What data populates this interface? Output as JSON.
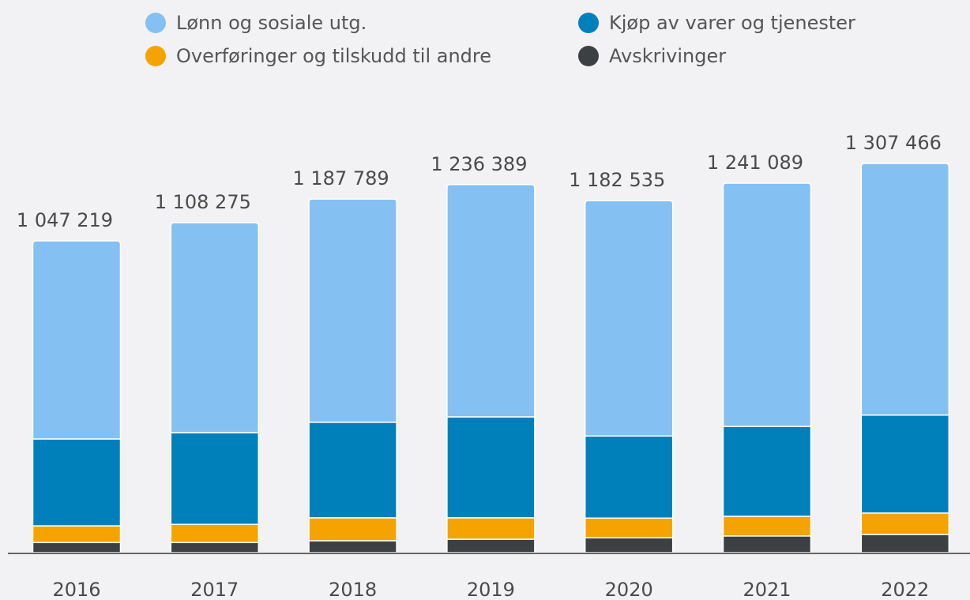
{
  "chart_data": {
    "type": "stacked_bar",
    "categories": [
      "2016",
      "2017",
      "2018",
      "2019",
      "2020",
      "2021",
      "2022"
    ],
    "series": [
      {
        "name": "Lønn og sosiale utg.",
        "color": "#85c0f2",
        "values": [
          665219,
          705275,
          749789,
          780389,
          790535,
          817089,
          845466
        ]
      },
      {
        "name": "Kjøp av varer og tjenester",
        "color": "#0080bb",
        "values": [
          292000,
          308000,
          321000,
          339000,
          276000,
          302000,
          329000
        ]
      },
      {
        "name": "Overføringer og tilskudd til andre",
        "color": "#f5a300",
        "values": [
          56000,
          61000,
          77000,
          72000,
          66000,
          66000,
          72000
        ]
      },
      {
        "name": "Avskrivinger",
        "color": "#3d4042",
        "values": [
          34000,
          34000,
          40000,
          45000,
          50000,
          56000,
          61000
        ]
      }
    ],
    "totals": [
      1047219,
      1108275,
      1187789,
      1236389,
      1182535,
      1241089,
      1307466
    ],
    "total_labels": [
      "1 047 219",
      "1 108 275",
      "1 187 789",
      "1 236 389",
      "1 182 535",
      "1 241 089",
      "1 307 466"
    ]
  }
}
